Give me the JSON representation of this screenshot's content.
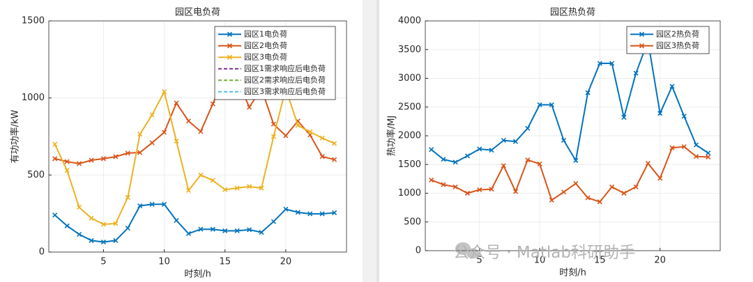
{
  "chart_data": [
    {
      "type": "line",
      "title": "园区电负荷",
      "x_label": "时刻/h",
      "y_label": "有功功率/kW",
      "x": [
        1,
        2,
        3,
        4,
        5,
        6,
        7,
        8,
        9,
        10,
        11,
        12,
        13,
        14,
        15,
        16,
        17,
        18,
        19,
        20,
        21,
        22,
        23,
        24
      ],
      "xlim": [
        0.5,
        25
      ],
      "xticks": [
        5,
        10,
        15,
        20
      ],
      "ylim": [
        0,
        1500
      ],
      "yticks": [
        0,
        500,
        1000,
        1500
      ],
      "grid": true,
      "legend": "northeast",
      "marker": "x",
      "series": [
        {
          "name": "园区1电负荷",
          "color": "#0072bd",
          "line_style": "solid",
          "values": [
            240,
            170,
            115,
            75,
            65,
            75,
            155,
            300,
            310,
            310,
            205,
            120,
            148,
            148,
            138,
            138,
            145,
            128,
            198,
            278,
            258,
            248,
            248,
            255
          ]
        },
        {
          "name": "园区2电负荷",
          "color": "#d95319",
          "line_style": "solid",
          "values": [
            606,
            587,
            574,
            596,
            606,
            619,
            642,
            646,
            709,
            777,
            967,
            850,
            782,
            962,
            1150,
            1120,
            940,
            1060,
            830,
            755,
            850,
            760,
            620,
            600
          ]
        },
        {
          "name": "园区3电负荷",
          "color": "#edb120",
          "line_style": "solid",
          "values": [
            700,
            530,
            290,
            220,
            180,
            185,
            355,
            765,
            890,
            1040,
            720,
            400,
            500,
            465,
            405,
            415,
            425,
            415,
            750,
            1060,
            822,
            780,
            740,
            705
          ]
        },
        {
          "name": "园区1需求响应后电负荷",
          "color": "#7e2f8e",
          "line_style": "dashed",
          "values": [
            null,
            null,
            null,
            null,
            null,
            null,
            null,
            null,
            null,
            null,
            null,
            null,
            null,
            null,
            null,
            null,
            null,
            null,
            null,
            null,
            null,
            null,
            null,
            null
          ]
        },
        {
          "name": "园区2需求响应后电负荷",
          "color": "#77ac30",
          "line_style": "dashed",
          "values": [
            null,
            null,
            null,
            null,
            null,
            null,
            null,
            null,
            null,
            null,
            null,
            null,
            null,
            null,
            null,
            null,
            null,
            null,
            null,
            null,
            null,
            null,
            null,
            null
          ]
        },
        {
          "name": "园区3需求响应后电负荷",
          "color": "#4dbeee",
          "line_style": "dashed",
          "values": [
            null,
            null,
            null,
            null,
            null,
            null,
            null,
            null,
            null,
            null,
            null,
            null,
            null,
            null,
            null,
            null,
            null,
            null,
            null,
            null,
            null,
            null,
            null,
            null
          ]
        }
      ]
    },
    {
      "type": "line",
      "title": "园区热负荷",
      "x_label": "时刻/h",
      "y_label": "热功率/MJ",
      "x": [
        1,
        2,
        3,
        4,
        5,
        6,
        7,
        8,
        9,
        10,
        11,
        12,
        13,
        14,
        15,
        16,
        17,
        18,
        19,
        20,
        21,
        22,
        23,
        24
      ],
      "xlim": [
        0.5,
        25
      ],
      "xticks": [
        5,
        10,
        15,
        20
      ],
      "ylim": [
        0,
        4000
      ],
      "yticks": [
        0,
        500,
        1000,
        1500,
        2000,
        2500,
        3000,
        3500,
        4000
      ],
      "grid": true,
      "legend": "northeast",
      "marker": "x",
      "series": [
        {
          "name": "园区2热负荷",
          "color": "#0072bd",
          "line_style": "solid",
          "values": [
            1760,
            1590,
            1540,
            1650,
            1770,
            1750,
            1920,
            1900,
            2130,
            2540,
            2540,
            1920,
            1570,
            2750,
            3260,
            3260,
            2320,
            3090,
            3650,
            2390,
            2860,
            2340,
            1840,
            1700
          ]
        },
        {
          "name": "园区3热负荷",
          "color": "#d95319",
          "line_style": "solid",
          "values": [
            1230,
            1150,
            1110,
            1000,
            1060,
            1070,
            1480,
            1030,
            1580,
            1510,
            880,
            1020,
            1170,
            920,
            850,
            1110,
            1000,
            1110,
            1520,
            1260,
            1790,
            1810,
            1640,
            1630
          ]
        }
      ]
    }
  ],
  "watermark": "公众号 · Matlab科研助手"
}
